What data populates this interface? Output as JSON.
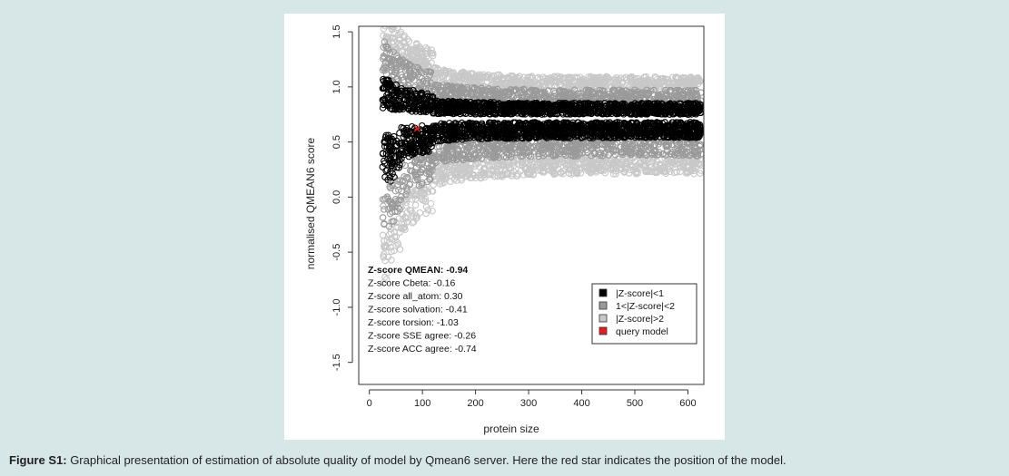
{
  "chart_data": {
    "type": "scatter",
    "title": "",
    "xlabel": "protein size",
    "ylabel": "normalised QMEAN6 score",
    "xlim": [
      -20,
      630
    ],
    "ylim": [
      -1.7,
      1.55
    ],
    "xticks": [
      "0",
      "100",
      "200",
      "300",
      "400",
      "500",
      "600"
    ],
    "xtick_values": [
      0,
      100,
      200,
      300,
      400,
      500,
      600
    ],
    "yticks": [
      "-1.5",
      "-1.0",
      "-0.5",
      "0.0",
      "0.5",
      "1.0",
      "1.5"
    ],
    "ytick_values": [
      -1.5,
      -1.0,
      -0.5,
      0.0,
      0.5,
      1.0,
      1.5
    ],
    "grid": false,
    "legend_position": "bottom-right",
    "series": [
      {
        "name": "|Z-score|>2",
        "color": "#c8c8c8",
        "mean": 0.72,
        "spread_min": 0.42,
        "spread_max": 0.62,
        "x_range": [
          25,
          625
        ]
      },
      {
        "name": "1<|Z-score|<2",
        "color": "#9a9a9a",
        "mean": 0.72,
        "spread_min": 0.22,
        "spread_max": 0.42,
        "x_range": [
          25,
          625
        ]
      },
      {
        "name": "|Z-score|<1",
        "color": "#000000",
        "mean": 0.72,
        "spread_min": 0.05,
        "spread_max": 0.22,
        "x_range": [
          25,
          625
        ]
      },
      {
        "name": "query model",
        "color": "#e02020",
        "points": [
          [
            90,
            0.62
          ]
        ]
      }
    ],
    "outliers": [
      [
        30,
        1.16
      ],
      [
        25,
        -0.02
      ],
      [
        26,
        -0.08
      ],
      [
        42,
        0.12
      ],
      [
        55,
        0.14
      ],
      [
        72,
        0.17
      ]
    ],
    "annotations": [
      {
        "label": "Z-score QMEAN: -0.94",
        "bold": true
      },
      {
        "label": "Z-score Cbeta: -0.16",
        "bold": false
      },
      {
        "label": "Z-score all_atom: 0.30",
        "bold": false
      },
      {
        "label": "Z-score solvation: -0.41",
        "bold": false
      },
      {
        "label": "Z-score torsion: -1.03",
        "bold": false
      },
      {
        "label": "Z-score SSE agree: -0.26",
        "bold": false
      },
      {
        "label": "Z-score ACC agree: -0.74",
        "bold": false
      }
    ],
    "legend": [
      {
        "label": "|Z-score|<1",
        "color": "#000000"
      },
      {
        "label": "1<|Z-score|<2",
        "color": "#9a9a9a"
      },
      {
        "label": "|Z-score|>2",
        "color": "#c8c8c8"
      },
      {
        "label": "query model",
        "color": "#e02020"
      }
    ]
  },
  "caption": {
    "label": "Figure S1:",
    "text": " Graphical presentation of estimation of absolute quality of model by Qmean6 server. Here the red star indicates the position of the model."
  }
}
